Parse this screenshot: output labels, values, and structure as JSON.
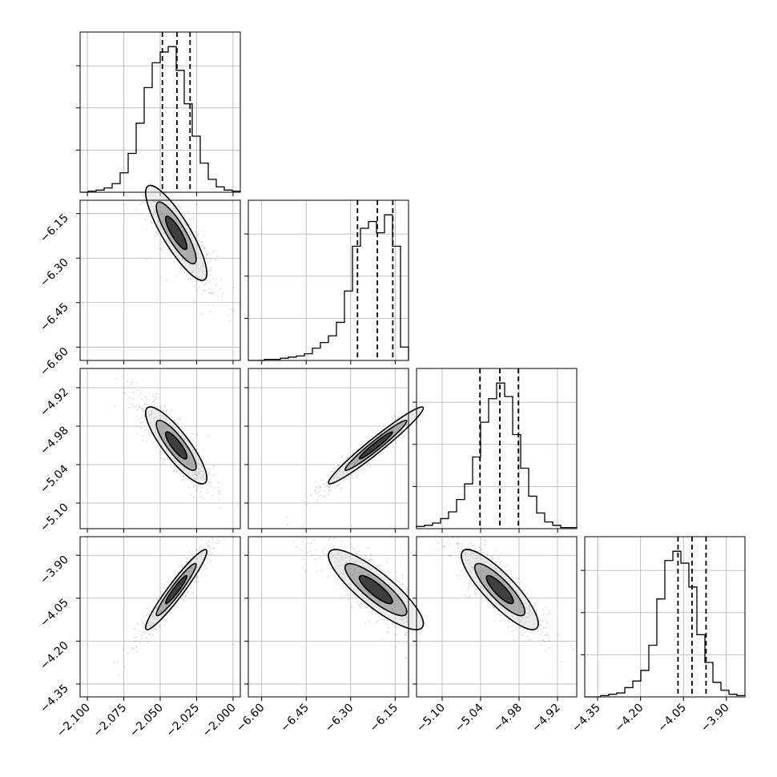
{
  "chart_data": {
    "type": "corner",
    "title": "",
    "colors": {
      "line": "#000000",
      "grid": "#b0b0b0",
      "background": "#ffffff",
      "scatter": "#000000",
      "hist2d_light": "#d9d9d9",
      "hist2d_mid": "#808080",
      "hist2d_dark": "#111111"
    },
    "variables": [
      {
        "range": [
          -2.105,
          -1.995
        ],
        "ticks": [
          -2.1,
          -2.075,
          -2.05,
          -2.025,
          -2.0
        ],
        "tick_labels": [
          "−2.100",
          "−2.075",
          "−2.050",
          "−2.025",
          "−2.000"
        ],
        "quantiles": [
          -2.0485,
          -2.0385,
          -2.0295
        ],
        "label": ""
      },
      {
        "range": [
          -6.645,
          -6.105
        ],
        "ticks": [
          -6.6,
          -6.45,
          -6.3,
          -6.15
        ],
        "tick_labels": [
          "−6.60",
          "−6.45",
          "−6.30",
          "−6.15"
        ],
        "quantiles": [
          -6.277,
          -6.21,
          -6.158
        ],
        "label": ""
      },
      {
        "range": [
          -5.14,
          -4.89
        ],
        "ticks": [
          -5.1,
          -5.04,
          -4.98,
          -4.92
        ],
        "tick_labels": [
          "−5.10",
          "−5.04",
          "−4.98",
          "−4.92"
        ],
        "quantiles": [
          -5.041,
          -5.01,
          -4.981
        ],
        "label": ""
      },
      {
        "range": [
          -4.395,
          -3.835
        ],
        "ticks": [
          -4.35,
          -4.2,
          -4.05,
          -3.9
        ],
        "tick_labels": [
          "−4.35",
          "−4.20",
          "−4.05",
          "−3.90"
        ],
        "quantiles": [
          -4.069,
          -4.02,
          -3.971
        ],
        "label": ""
      }
    ],
    "histograms": [
      {
        "counts": [
          0,
          1,
          2,
          4,
          8,
          18,
          36,
          64,
          97,
          120,
          130,
          135,
          113,
          82,
          52,
          27,
          12,
          5,
          2,
          1
        ]
      },
      {
        "counts": [
          0,
          0,
          1,
          1,
          2,
          3,
          4,
          6,
          11,
          16,
          22,
          34,
          62,
          102,
          118,
          124,
          114,
          130,
          102,
          12
        ]
      },
      {
        "counts": [
          2,
          3,
          5,
          9,
          15,
          26,
          40,
          64,
          95,
          116,
          130,
          118,
          84,
          54,
          29,
          14,
          6,
          3,
          1,
          1
        ]
      },
      {
        "counts": [
          0,
          0,
          1,
          2,
          3,
          7,
          12,
          20,
          39,
          74,
          103,
          110,
          101,
          83,
          47,
          26,
          11,
          5,
          2,
          1
        ]
      }
    ],
    "pairs": [
      {
        "i": 0,
        "j": 1,
        "center": [
          -2.039,
          -6.215
        ],
        "sd": [
          0.0105,
          0.08
        ],
        "corr": -0.85
      },
      {
        "i": 0,
        "j": 2,
        "center": [
          -2.039,
          -5.01
        ],
        "sd": [
          0.0105,
          0.03
        ],
        "corr": -0.85
      },
      {
        "i": 1,
        "j": 2,
        "center": [
          -6.215,
          -5.01
        ],
        "sd": [
          0.08,
          0.03
        ],
        "corr": 0.97
      },
      {
        "i": 0,
        "j": 3,
        "center": [
          -2.039,
          -4.02
        ],
        "sd": [
          0.0105,
          0.07
        ],
        "corr": 0.95
      },
      {
        "i": 1,
        "j": 3,
        "center": [
          -6.215,
          -4.02
        ],
        "sd": [
          0.08,
          0.07
        ],
        "corr": -0.85
      },
      {
        "i": 2,
        "j": 3,
        "center": [
          -5.01,
          -4.02
        ],
        "sd": [
          0.03,
          0.07
        ],
        "corr": -0.85
      }
    ]
  }
}
